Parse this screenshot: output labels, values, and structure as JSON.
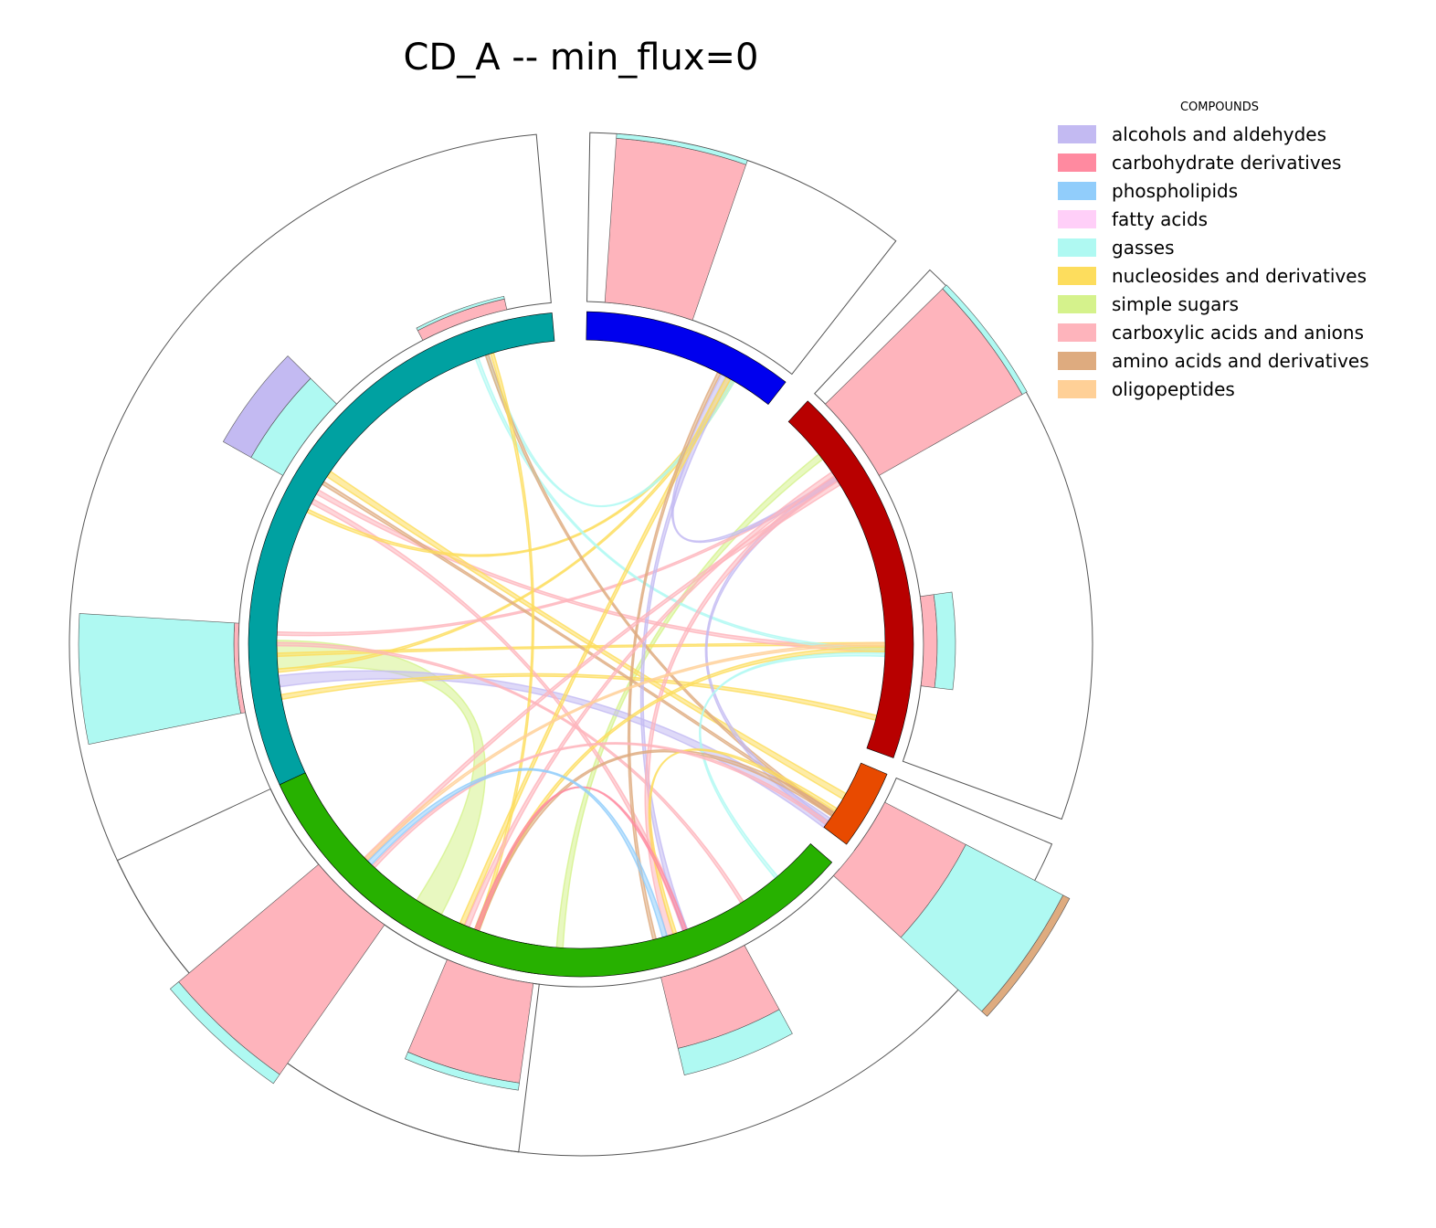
{
  "chart_data": {
    "type": "chord",
    "title": "CD_A -- min_flux=0",
    "legend": {
      "title": "COMPOUNDS",
      "placement": "top-right",
      "items": [
        {
          "label": "alcohols and aldehydes",
          "color": "#c3baf2"
        },
        {
          "label": "carbohydrate derivatives",
          "color": "#ff8aa0"
        },
        {
          "label": "phospholipids",
          "color": "#91cdfb"
        },
        {
          "label": "fatty acids",
          "color": "#ffcff8"
        },
        {
          "label": "gasses",
          "color": "#aff9f2"
        },
        {
          "label": "nucleosides and derivatives",
          "color": "#fddd5d"
        },
        {
          "label": "simple sugars",
          "color": "#d5f28c"
        },
        {
          "label": "carboxylic acids and anions",
          "color": "#feb4bc"
        },
        {
          "label": "amino acids and derivatives",
          "color": "#deab7f"
        },
        {
          "label": "oligopeptides",
          "color": "#ffd097"
        }
      ]
    },
    "groups": [
      {
        "id": "teal",
        "color": "#00a1a1",
        "start": 187,
        "end": 355
      },
      {
        "id": "blue",
        "color": "#0000ee",
        "start": 1,
        "end": 38
      },
      {
        "id": "red",
        "color": "#b80000",
        "start": 43,
        "end": 110
      },
      {
        "id": "orange",
        "color": "#e84a00",
        "start": 113,
        "end": 127
      },
      {
        "id": "green",
        "color": "#27b100",
        "start": 131,
        "end": 245
      }
    ],
    "outer_bars": [
      {
        "group": "blue",
        "angle": 11.5,
        "segments": [
          {
            "compound": "carboxylic acids and anions",
            "value": 0.18
          },
          {
            "compound": "gasses",
            "value": 0.005
          }
        ]
      },
      {
        "group": "red",
        "angle": 53,
        "segments": [
          {
            "compound": "carboxylic acids and anions",
            "value": 0.18
          },
          {
            "compound": "gasses",
            "value": 0.006
          }
        ]
      },
      {
        "group": "red",
        "angle": 89.5,
        "segments": [
          {
            "compound": "carboxylic acids and anions",
            "value": 0.015
          },
          {
            "compound": "gasses",
            "value": 0.02
          }
        ]
      },
      {
        "group": "orange",
        "angle": 125,
        "segments": [
          {
            "compound": "carboxylic acids and anions",
            "value": 0.1
          },
          {
            "compound": "gasses",
            "value": 0.12
          },
          {
            "compound": "amino acids and derivatives",
            "value": 0.008
          }
        ]
      },
      {
        "group": "green",
        "angle": 159,
        "segments": [
          {
            "compound": "carboxylic acids and anions",
            "value": 0.08
          },
          {
            "compound": "gasses",
            "value": 0.03
          }
        ]
      },
      {
        "group": "green",
        "angle": 195.5,
        "segments": [
          {
            "compound": "carboxylic acids and anions",
            "value": 0.11
          },
          {
            "compound": "gasses",
            "value": 0.008
          }
        ]
      },
      {
        "group": "green",
        "angle": 222.5,
        "segments": [
          {
            "compound": "carboxylic acids and anions",
            "value": 0.2
          },
          {
            "compound": "gasses",
            "value": 0.012
          }
        ]
      },
      {
        "group": "teal",
        "angle": 266,
        "segments": [
          {
            "compound": "carboxylic acids and anions",
            "value": 0.005
          },
          {
            "compound": "gasses",
            "value": 0.17
          }
        ]
      },
      {
        "group": "teal",
        "angle": 307,
        "segments": [
          {
            "compound": "gasses",
            "value": 0.04
          },
          {
            "compound": "alcohols and aldehydes",
            "value": 0.035
          }
        ]
      },
      {
        "group": "teal",
        "angle": 340,
        "segments": [
          {
            "compound": "carboxylic acids and anions",
            "value": 0.012
          },
          {
            "compound": "gasses",
            "value": 0.003
          }
        ]
      }
    ],
    "chords": [
      {
        "from": 184,
        "to": 52,
        "compound": "simple sugars",
        "width": 4
      },
      {
        "from": 210,
        "to": 268,
        "compound": "simple sugars",
        "width": 18
      },
      {
        "from": 263,
        "to": 126,
        "compound": "alcohols and aldehydes",
        "width": 7
      },
      {
        "from": 260,
        "to": 104,
        "compound": "nucleosides and derivatives",
        "width": 3
      },
      {
        "from": 265,
        "to": 30,
        "compound": "nucleosides and derivatives",
        "width": 2
      },
      {
        "from": 268,
        "to": 90,
        "compound": "nucleosides and derivatives",
        "width": 2
      },
      {
        "from": 272,
        "to": 57,
        "compound": "carboxylic acids and anions",
        "width": 2
      },
      {
        "from": 270,
        "to": 148,
        "compound": "carboxylic acids and anions",
        "width": 2
      },
      {
        "from": 300,
        "to": 91,
        "compound": "carboxylic acids and anions",
        "width": 3
      },
      {
        "from": 302,
        "to": 124,
        "compound": "amino acids and derivatives",
        "width": 2
      },
      {
        "from": 298,
        "to": 160,
        "compound": "carboxylic acids and anions",
        "width": 3
      },
      {
        "from": 304,
        "to": 120,
        "compound": "nucleosides and derivatives",
        "width": 4
      },
      {
        "from": 296,
        "to": 30,
        "compound": "nucleosides and derivatives",
        "width": 2
      },
      {
        "from": 342,
        "to": 30,
        "compound": "gasses",
        "width": 2
      },
      {
        "from": 340,
        "to": 91,
        "compound": "gasses",
        "width": 2
      },
      {
        "from": 342,
        "to": 124,
        "compound": "amino acids and derivatives",
        "width": 2
      },
      {
        "from": 343,
        "to": 200,
        "compound": "nucleosides and derivatives",
        "width": 2
      },
      {
        "from": 28,
        "to": 57,
        "compound": "alcohols and aldehydes",
        "width": 3
      },
      {
        "from": 29,
        "to": 160,
        "compound": "alcohols and aldehydes",
        "width": 3
      },
      {
        "from": 29,
        "to": 203,
        "compound": "nucleosides and derivatives",
        "width": 3
      },
      {
        "from": 27,
        "to": 166,
        "compound": "amino acids and derivatives",
        "width": 2
      },
      {
        "from": 57,
        "to": 126,
        "compound": "alcohols and aldehydes",
        "width": 3
      },
      {
        "from": 57,
        "to": 163,
        "compound": "carboxylic acids and anions",
        "width": 4
      },
      {
        "from": 56,
        "to": 202,
        "compound": "carboxylic acids and anions",
        "width": 3
      },
      {
        "from": 58,
        "to": 225,
        "compound": "carboxylic acids and anions",
        "width": 3
      },
      {
        "from": 91,
        "to": 200,
        "compound": "nucleosides and derivatives",
        "width": 3
      },
      {
        "from": 92,
        "to": 140,
        "compound": "gasses",
        "width": 2
      },
      {
        "from": 90,
        "to": 225,
        "compound": "oligopeptides",
        "width": 2
      },
      {
        "from": 124,
        "to": 200,
        "compound": "amino acids and derivatives",
        "width": 3
      },
      {
        "from": 123,
        "to": 162,
        "compound": "nucleosides and derivatives",
        "width": 2
      },
      {
        "from": 126,
        "to": 223,
        "compound": "carboxylic acids and anions",
        "width": 2
      },
      {
        "from": 200,
        "to": 160,
        "compound": "carbohydrate derivatives",
        "width": 2
      },
      {
        "from": 224,
        "to": 164,
        "compound": "phospholipids",
        "width": 3
      }
    ]
  }
}
